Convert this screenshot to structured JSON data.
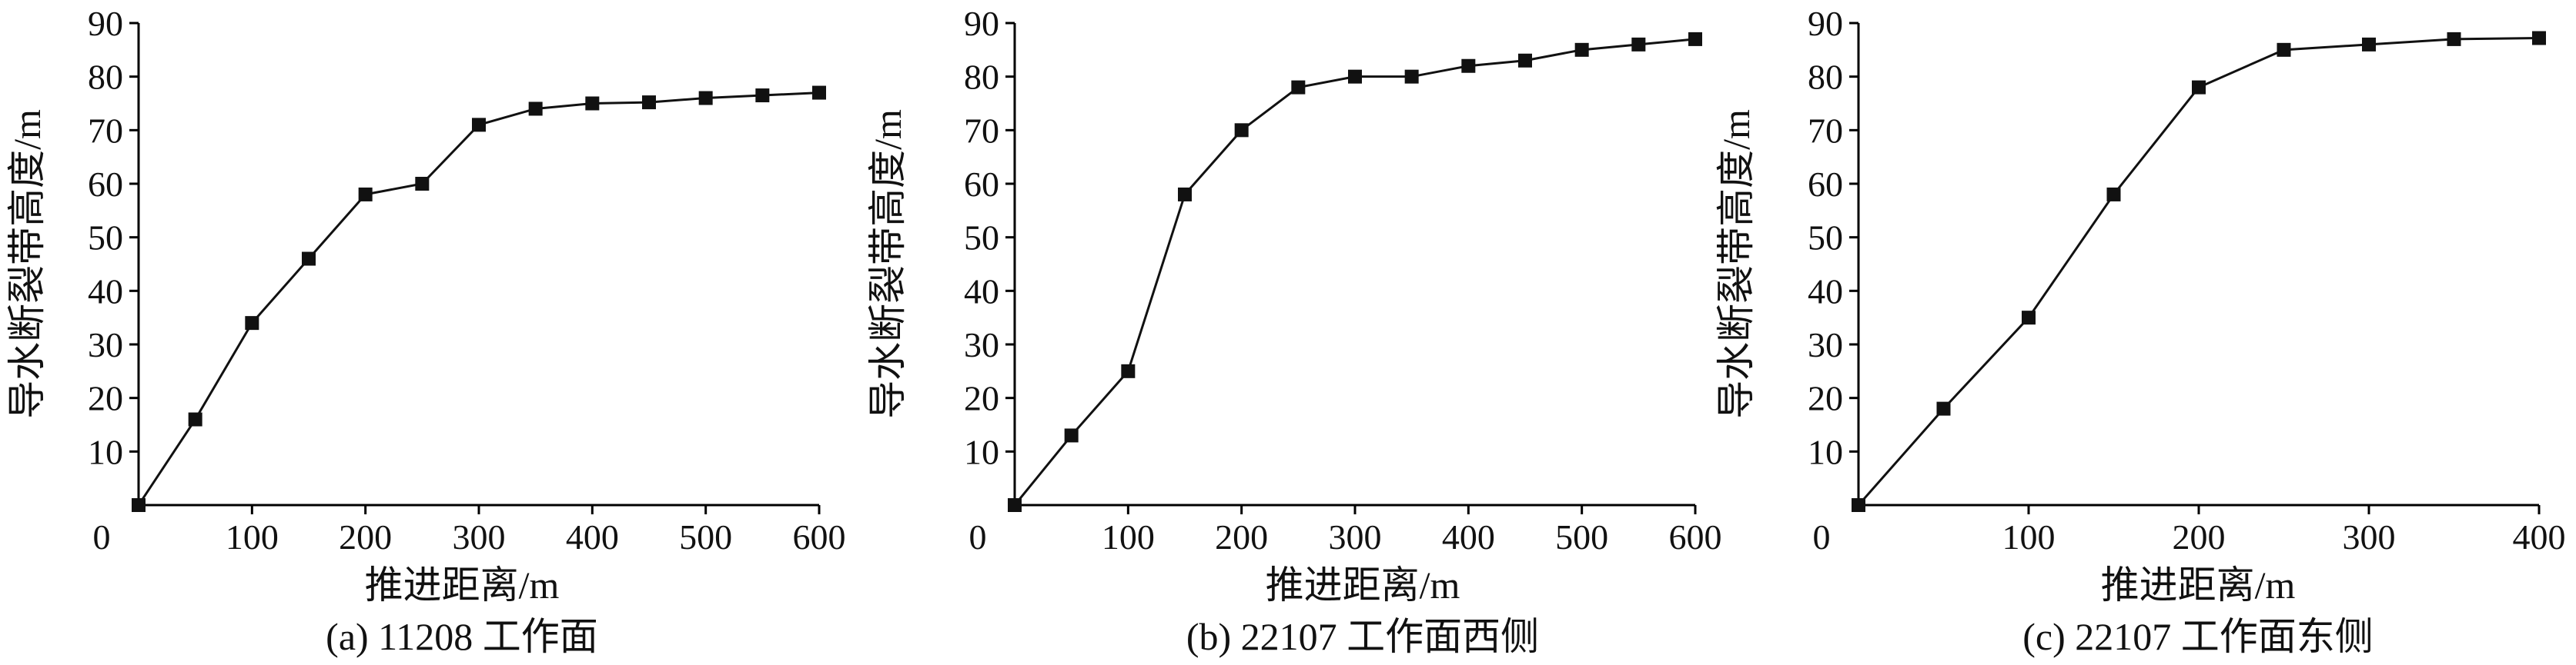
{
  "chart_data": [
    {
      "type": "line",
      "caption": "(a) 11208 工作面",
      "xlabel": "推进距离/m",
      "ylabel": "导水断裂带高度/m",
      "xlim": [
        0,
        600
      ],
      "ylim": [
        0,
        90
      ],
      "x_ticks": [
        100,
        200,
        300,
        400,
        500,
        600
      ],
      "y_ticks": [
        10,
        20,
        30,
        40,
        50,
        60,
        70,
        80,
        90
      ],
      "origin_label": "0",
      "grid": false,
      "series": [
        {
          "x": [
            0,
            50,
            100,
            150,
            200,
            250,
            300,
            350,
            400,
            450,
            500,
            550,
            600
          ],
          "y": [
            0,
            16,
            34,
            46,
            58,
            60,
            71,
            74,
            75,
            75.2,
            76,
            76.5,
            77
          ]
        }
      ]
    },
    {
      "type": "line",
      "caption": "(b) 22107 工作面西侧",
      "xlabel": "推进距离/m",
      "ylabel": "导水断裂带高度/m",
      "xlim": [
        0,
        600
      ],
      "ylim": [
        0,
        90
      ],
      "x_ticks": [
        100,
        200,
        300,
        400,
        500,
        600
      ],
      "y_ticks": [
        10,
        20,
        30,
        40,
        50,
        60,
        70,
        80,
        90
      ],
      "origin_label": "0",
      "grid": false,
      "series": [
        {
          "x": [
            0,
            50,
            100,
            150,
            200,
            250,
            300,
            350,
            400,
            450,
            500,
            550,
            600
          ],
          "y": [
            0,
            13,
            25,
            58,
            70,
            78,
            80,
            80,
            82,
            83,
            85,
            86,
            87
          ]
        }
      ]
    },
    {
      "type": "line",
      "caption": "(c) 22107 工作面东侧",
      "xlabel": "推进距离/m",
      "ylabel": "导水断裂带高度/m",
      "xlim": [
        0,
        400
      ],
      "ylim": [
        0,
        90
      ],
      "x_ticks": [
        100,
        200,
        300,
        400
      ],
      "y_ticks": [
        10,
        20,
        30,
        40,
        50,
        60,
        70,
        80,
        90
      ],
      "origin_label": "0",
      "grid": false,
      "series": [
        {
          "x": [
            0,
            50,
            100,
            150,
            200,
            250,
            300,
            350,
            400
          ],
          "y": [
            0,
            18,
            35,
            58,
            78,
            85,
            86,
            87,
            87.2
          ]
        }
      ]
    }
  ]
}
